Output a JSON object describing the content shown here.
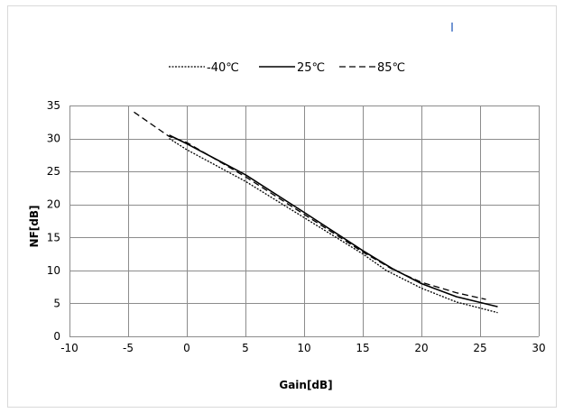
{
  "chart_data": {
    "type": "line",
    "title": "",
    "xlabel": "Gain[dB]",
    "ylabel": "NF[dB]",
    "xlim": [
      -10,
      30
    ],
    "ylim": [
      0,
      35
    ],
    "xticks": [
      -10,
      -5,
      0,
      5,
      10,
      15,
      20,
      25,
      30
    ],
    "yticks": [
      0,
      5,
      10,
      15,
      20,
      25,
      30,
      35
    ],
    "grid": true,
    "legend_position": "top",
    "series": [
      {
        "name": "-40℃",
        "style": "dotted",
        "color": "#000000",
        "x": [
          -1.5,
          0,
          5,
          10,
          15,
          17,
          20,
          23,
          26.5
        ],
        "y": [
          30,
          28.3,
          23.5,
          18,
          12.5,
          10,
          7.3,
          5.2,
          3.6
        ]
      },
      {
        "name": "25℃",
        "style": "solid",
        "color": "#000000",
        "x": [
          -1.5,
          0,
          5,
          10,
          15,
          17.5,
          20,
          23,
          26.5
        ],
        "y": [
          30.5,
          29.2,
          24.5,
          18.8,
          13,
          10.3,
          8,
          6,
          4.5
        ]
      },
      {
        "name": "85℃",
        "style": "dashed",
        "color": "#000000",
        "x": [
          -4.5,
          -1.5,
          0,
          5,
          10,
          15,
          17.5,
          20,
          23,
          25.5
        ],
        "y": [
          34,
          30.3,
          29.4,
          24.2,
          18.5,
          12.8,
          10.2,
          8.2,
          6.6,
          5.6
        ]
      }
    ]
  }
}
